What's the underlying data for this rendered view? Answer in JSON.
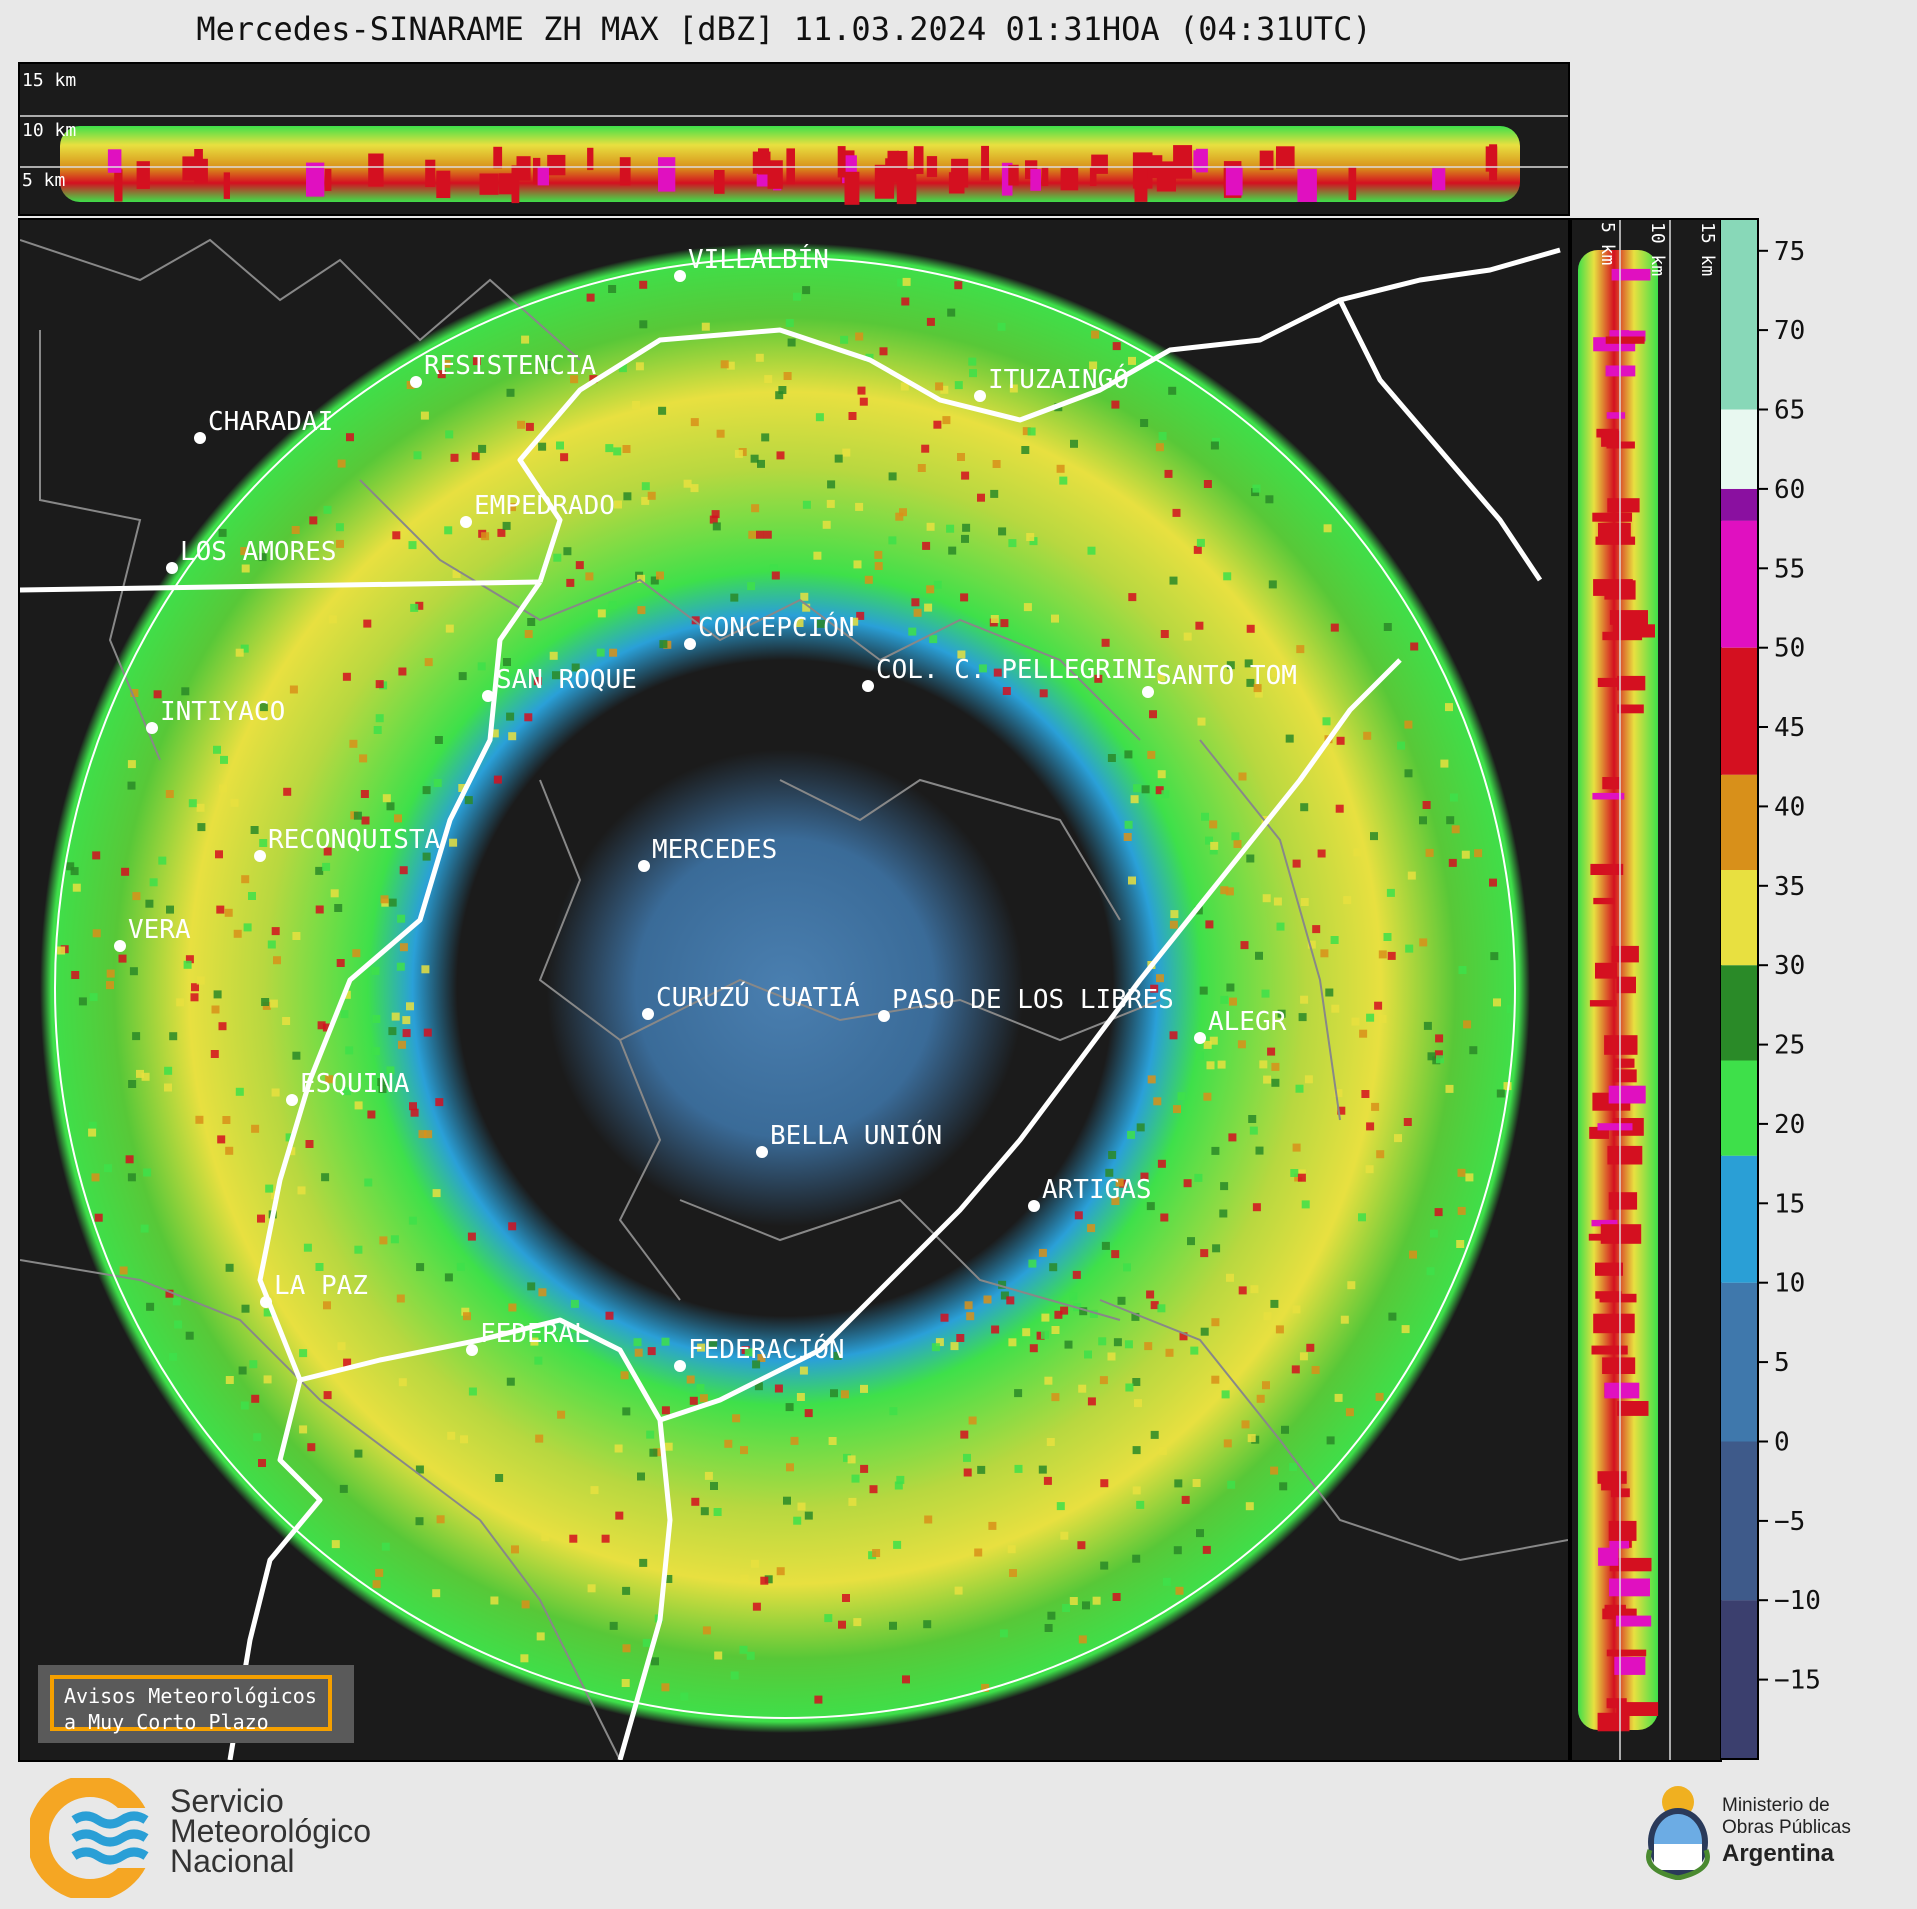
{
  "title": "Mercedes-SINARAME ZH MAX [dBZ] 11.03.2024 01:31HOA (04:31UTC)",
  "top_axis_labels": [
    "15 km",
    "10 km",
    "5 km"
  ],
  "side_axis_labels": [
    "5 km",
    "10 km",
    "15 km"
  ],
  "colorbar": {
    "unit": "dBZ",
    "ticks": [
      "75",
      "70",
      "65",
      "60",
      "55",
      "50",
      "45",
      "40",
      "35",
      "30",
      "25",
      "20",
      "15",
      "10",
      "5",
      "0",
      "−5",
      "−10",
      "−15"
    ],
    "range": [
      -20,
      77
    ],
    "color_stops": [
      {
        "from": -20,
        "to": -10,
        "color": "#3b3f6e"
      },
      {
        "from": -10,
        "to": 0,
        "color": "#3e5a8a"
      },
      {
        "from": 0,
        "to": 10,
        "color": "#3f78ac"
      },
      {
        "from": 10,
        "to": 18,
        "color": "#2a9fd6"
      },
      {
        "from": 18,
        "to": 24,
        "color": "#3ee04a"
      },
      {
        "from": 24,
        "to": 30,
        "color": "#2a8a28"
      },
      {
        "from": 30,
        "to": 36,
        "color": "#e8e040"
      },
      {
        "from": 36,
        "to": 42,
        "color": "#d8901a"
      },
      {
        "from": 42,
        "to": 50,
        "color": "#d41020"
      },
      {
        "from": 50,
        "to": 58,
        "color": "#e010c0"
      },
      {
        "from": 58,
        "to": 60,
        "color": "#8a10a0"
      },
      {
        "from": 60,
        "to": 65,
        "color": "#e8f8f0"
      },
      {
        "from": 65,
        "to": 77,
        "color": "#88d8b8"
      }
    ]
  },
  "locations": [
    {
      "name": "VILLALBÍN"
    },
    {
      "name": "RESISTENCIA"
    },
    {
      "name": "CHARADAI"
    },
    {
      "name": "ITUZAINGÓ"
    },
    {
      "name": "EMPEDRADO"
    },
    {
      "name": "LOS AMORES"
    },
    {
      "name": "CONCEPCIÓN"
    },
    {
      "name": "SAN ROQUE"
    },
    {
      "name": "COL. C. PELLEGRINI"
    },
    {
      "name": "SANTO TOM"
    },
    {
      "name": "INTIYACO"
    },
    {
      "name": "MERCEDES"
    },
    {
      "name": "RECONQUISTA"
    },
    {
      "name": "VERA"
    },
    {
      "name": "CURUZÚ CUATIÁ"
    },
    {
      "name": "PASO DE LOS LIBRES"
    },
    {
      "name": "ALEGR"
    },
    {
      "name": "ESQUINA"
    },
    {
      "name": "BELLA UNIÓN"
    },
    {
      "name": "ARTIGAS"
    },
    {
      "name": "LA PAZ"
    },
    {
      "name": "FEDERAL"
    },
    {
      "name": "FEDERACIÓN"
    }
  ],
  "warning_box": {
    "line1": "Avisos Meteorológicos",
    "line2": "a Muy Corto Plazo"
  },
  "footer": {
    "smn": [
      "Servicio",
      "Meteorológico",
      "Nacional"
    ],
    "ministry": [
      "Ministerio de",
      "Obras Públicas",
      "Argentina"
    ]
  }
}
